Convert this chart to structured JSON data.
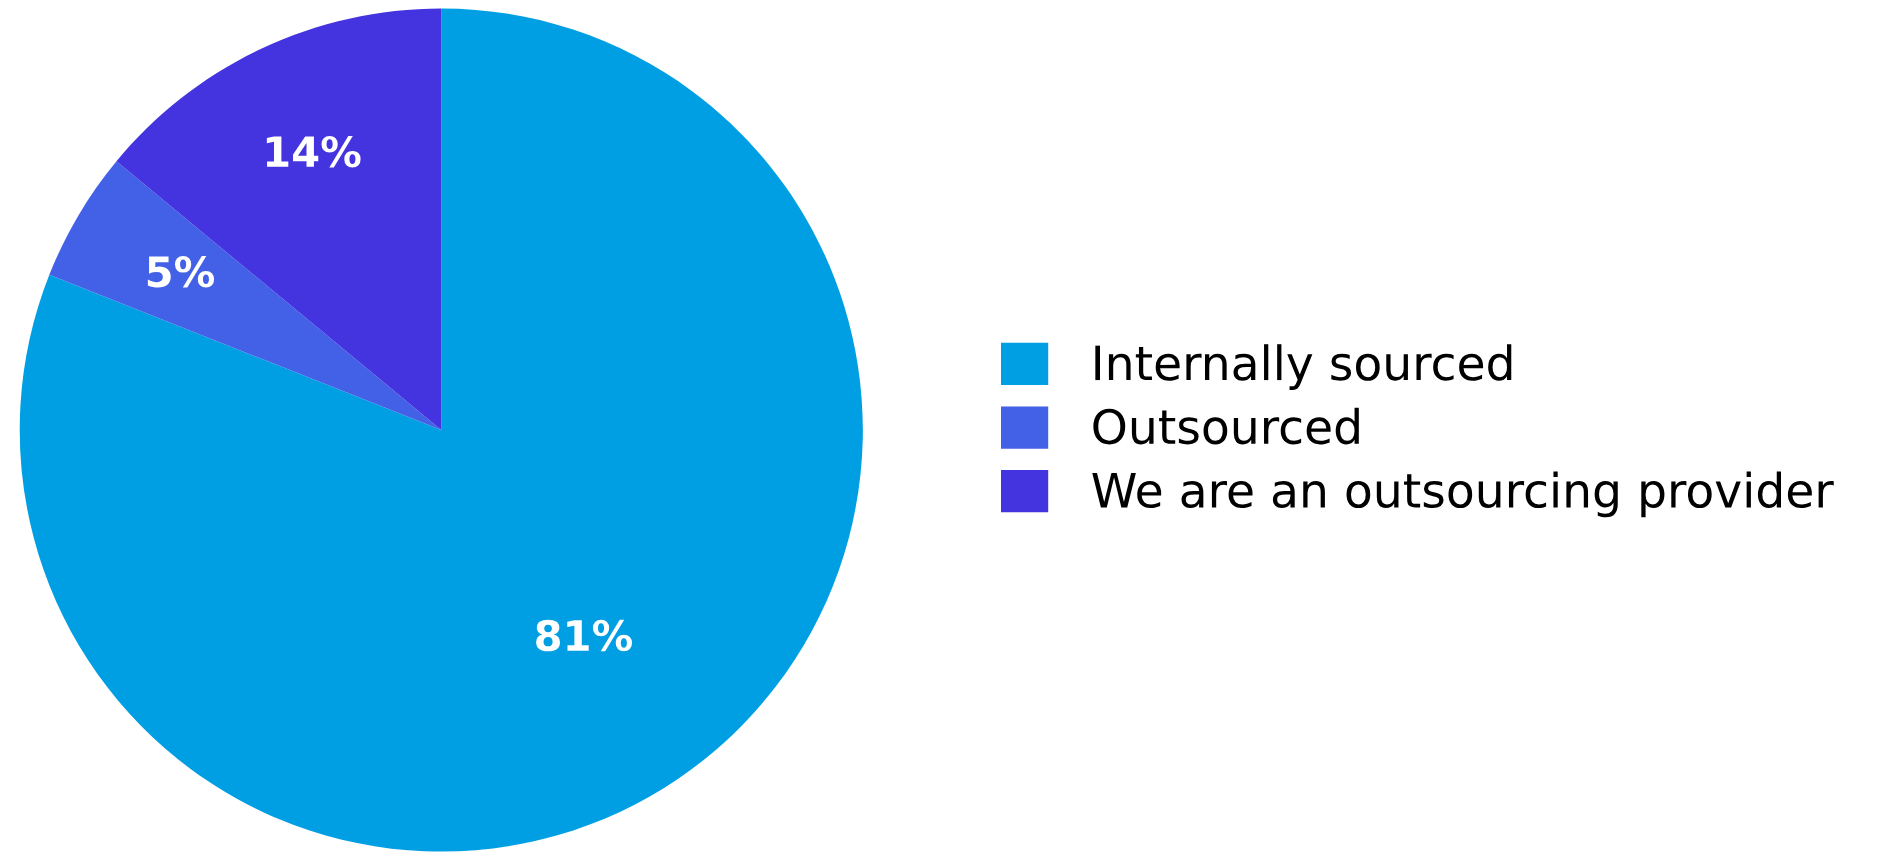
{
  "chart_data": {
    "type": "pie",
    "categories": [
      "Internally sourced",
      "Outsourced",
      "We are an outsourcing provider"
    ],
    "values": [
      81,
      5,
      14
    ],
    "colors": [
      "#009fe3",
      "#4361e6",
      "#4434e0"
    ],
    "value_labels": [
      "81%",
      "5%",
      "14%"
    ],
    "legend": "right"
  }
}
